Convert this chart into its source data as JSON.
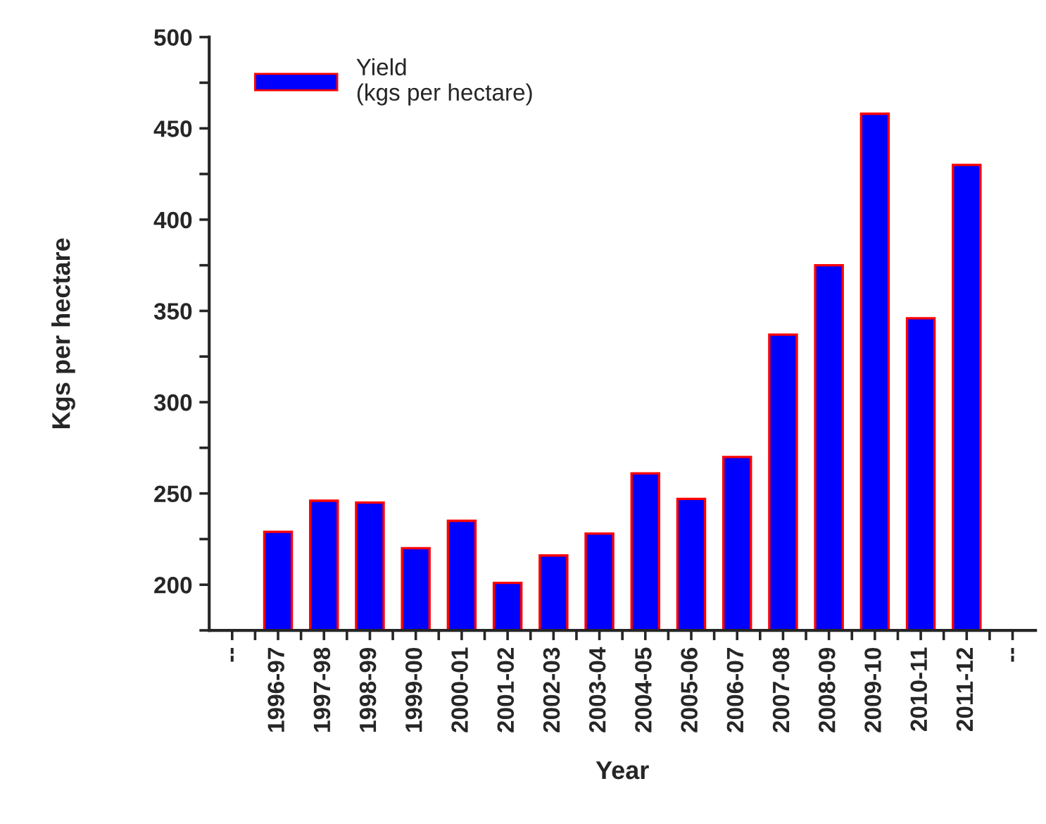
{
  "chart_data": {
    "type": "bar",
    "xlabel": "Year",
    "ylabel": "Kgs per hectare",
    "categories": [
      "--",
      "1996-97",
      "1997-98",
      "1998-99",
      "1999-00",
      "2000-01",
      "2001-02",
      "2002-03",
      "2003-04",
      "2004-05",
      "2005-06",
      "2006-07",
      "2007-08",
      "2008-09",
      "2009-10",
      "2010-11",
      "2011-12",
      "--"
    ],
    "series": [
      {
        "name": "Yield\n(kgs per hectare)",
        "color": "#0000ff",
        "values": [
          null,
          229,
          246,
          245,
          220,
          235,
          201,
          216,
          228,
          261,
          247,
          270,
          337,
          375,
          458,
          346,
          430,
          null
        ]
      }
    ],
    "ylim": [
      175,
      500
    ],
    "yticks": [
      {
        "value": 175,
        "label": null
      },
      200,
      {
        "value": 225,
        "label": null
      },
      250,
      {
        "value": 275,
        "label": null
      },
      300,
      {
        "value": 325,
        "label": null
      },
      350,
      {
        "value": 375,
        "label": null
      },
      400,
      {
        "value": 425,
        "label": null
      },
      450,
      {
        "value": 475,
        "label": null
      },
      500
    ],
    "grid": false,
    "legend": "top left"
  }
}
